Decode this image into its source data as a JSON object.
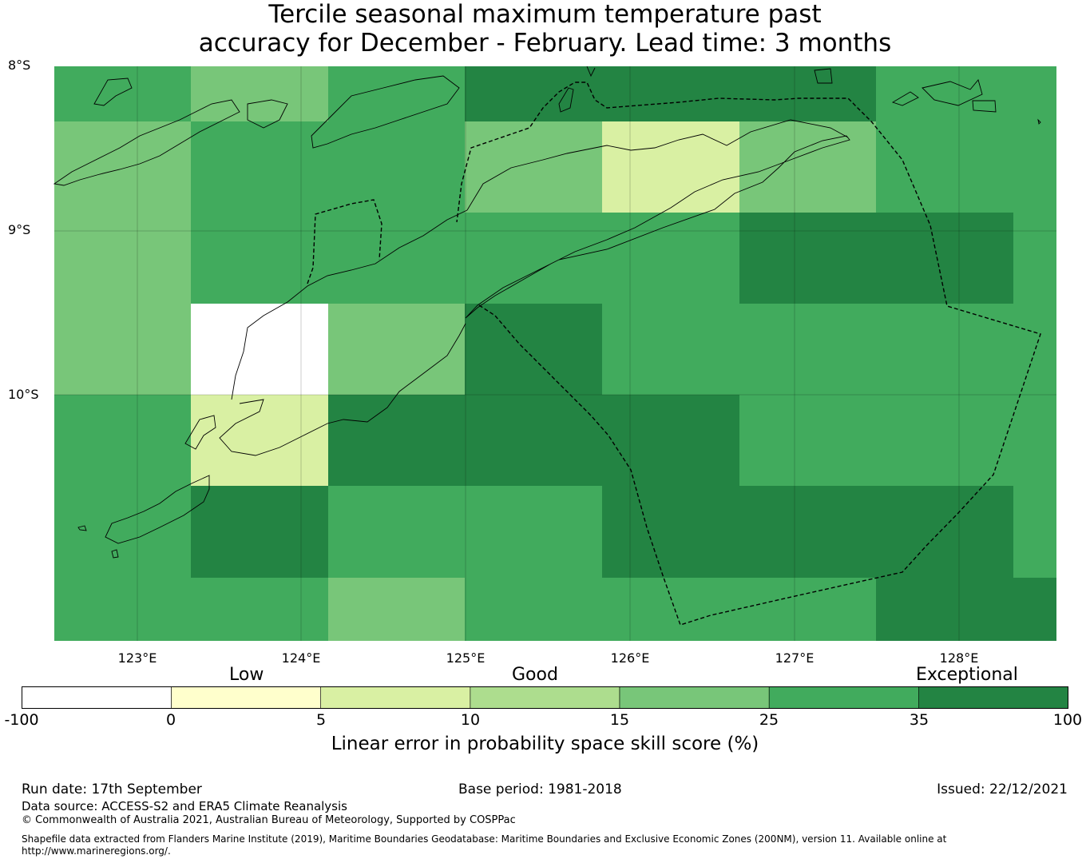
{
  "title": {
    "line1": "Tercile seasonal maximum temperature past",
    "line2": "accuracy for December - February. Lead time: 3 months"
  },
  "map": {
    "lat_labels": [
      "8°S",
      "9°S",
      "10°S"
    ],
    "lon_labels": [
      "123°E",
      "124°E",
      "125°E",
      "126°E",
      "127°E",
      "128°E"
    ],
    "grid_skill_categories": [
      [
        5,
        4,
        5,
        6,
        6,
        6,
        5,
        5
      ],
      [
        4,
        5,
        5,
        4,
        2,
        4,
        5,
        5
      ],
      [
        4,
        5,
        5,
        5,
        5,
        6,
        6,
        5
      ],
      [
        4,
        0,
        4,
        6,
        5,
        5,
        5,
        5
      ],
      [
        5,
        2,
        6,
        6,
        6,
        5,
        5,
        5
      ],
      [
        5,
        6,
        5,
        5,
        6,
        6,
        6,
        5
      ],
      [
        5,
        5,
        4,
        5,
        5,
        5,
        6,
        6
      ]
    ]
  },
  "colorbar": {
    "qualitative": [
      "Low",
      "Good",
      "Exceptional"
    ],
    "ticks": [
      "-100",
      "0",
      "5",
      "10",
      "15",
      "25",
      "35",
      "100"
    ],
    "colors": [
      "#ffffff",
      "#ffffcc",
      "#d9f0a3",
      "#addd8e",
      "#78c679",
      "#41ab5d",
      "#238443"
    ],
    "title": "Linear error in probability space skill score (%)"
  },
  "footer": {
    "run_date": "Run date: 17th September",
    "base_period": "Base period: 1981-2018",
    "issued": "Issued: 22/12/2021",
    "data_source": "Data source: ACCESS-S2 and ERA5 Climate Reanalysis",
    "copyright": "© Commonwealth of Australia 2021, Australian Bureau of Meteorology, Supported by COSPPac",
    "shapefile": "Shapefile data extracted from Flanders Marine Institute (2019), Maritime Boundaries Geodatabase: Maritime Boundaries and Exclusive Economic Zones (200NM), version 11. Available online at http://www.marineregions.org/."
  }
}
